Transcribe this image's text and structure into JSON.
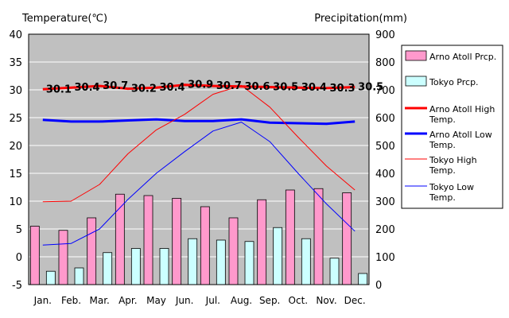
{
  "chart_data": {
    "type": "bar",
    "left_axis_title": "Temperature(℃)",
    "right_axis_title": "Precipitation(mm)",
    "categories": [
      "Jan.",
      "Feb.",
      "Mar.",
      "Apr.",
      "May",
      "Jun.",
      "Jul.",
      "Aug.",
      "Sep.",
      "Oct.",
      "Nov.",
      "Dec."
    ],
    "ylim_left": [
      -5,
      40
    ],
    "ylim_right": [
      0,
      900
    ],
    "yticks_left": [
      "-5",
      "0",
      "5",
      "10",
      "15",
      "20",
      "25",
      "30",
      "35",
      "40"
    ],
    "yticks_right": [
      "0",
      "100",
      "200",
      "300",
      "400",
      "500",
      "600",
      "700",
      "800",
      "900"
    ],
    "grid": true,
    "legend_position": "right",
    "bar_series": [
      {
        "name": "Arno Atoll Prcp.",
        "color": "#ff99cc",
        "values": [
          210,
          195,
          240,
          325,
          320,
          310,
          280,
          240,
          305,
          340,
          345,
          330
        ]
      },
      {
        "name": "Tokyo Prcp.",
        "color": "#ccffff",
        "values": [
          48,
          60,
          115,
          130,
          130,
          165,
          160,
          155,
          205,
          165,
          95,
          40
        ]
      }
    ],
    "line_series": [
      {
        "name": "Arno Atoll High Temp.",
        "color": "#ff0000",
        "width": 3,
        "values": [
          30.1,
          30.4,
          30.7,
          30.2,
          30.4,
          30.9,
          30.7,
          30.6,
          30.5,
          30.4,
          30.3,
          30.5
        ],
        "labels": [
          "30.1",
          "30.4",
          "30.7",
          "30.2",
          "30.4",
          "30.9",
          "30.7",
          "30.6",
          "30.5",
          "30.4",
          "30.3",
          "30.5"
        ]
      },
      {
        "name": "Arno Atoll Low Temp.",
        "color": "#0000ff",
        "width": 3,
        "values": [
          24.6,
          24.3,
          24.3,
          24.5,
          24.7,
          24.4,
          24.4,
          24.7,
          24.1,
          24.0,
          23.9,
          24.3
        ]
      },
      {
        "name": "Tokyo High Temp.",
        "color": "#ff0000",
        "width": 1,
        "values": [
          9.9,
          10.0,
          13.0,
          18.5,
          22.8,
          25.6,
          29.2,
          30.8,
          26.9,
          21.5,
          16.3,
          12.0
        ]
      },
      {
        "name": "Tokyo Low Temp.",
        "color": "#0000ff",
        "width": 1,
        "values": [
          2.1,
          2.4,
          5.0,
          10.3,
          15.0,
          18.9,
          22.6,
          24.2,
          20.7,
          15.0,
          9.5,
          4.6
        ]
      }
    ]
  },
  "legend": {
    "items": [
      {
        "lines": [
          "Arno Atoll Prcp."
        ],
        "kind": "rect",
        "color": "#ff99cc"
      },
      {
        "lines": [
          "Tokyo Prcp."
        ],
        "kind": "rect",
        "color": "#ccffff"
      },
      {
        "lines": [
          "Arno Atoll High",
          "Temp."
        ],
        "kind": "line",
        "color": "#ff0000",
        "width": 3
      },
      {
        "lines": [
          "Arno Atoll Low",
          "Temp."
        ],
        "kind": "line",
        "color": "#0000ff",
        "width": 3
      },
      {
        "lines": [
          "Tokyo High",
          "Temp."
        ],
        "kind": "line",
        "color": "#ff0000",
        "width": 1
      },
      {
        "lines": [
          "Tokyo Low",
          "Temp."
        ],
        "kind": "line",
        "color": "#0000ff",
        "width": 1
      }
    ]
  },
  "colors": {
    "plot_background": "#c0c0c0",
    "grid": "#ffffff"
  }
}
